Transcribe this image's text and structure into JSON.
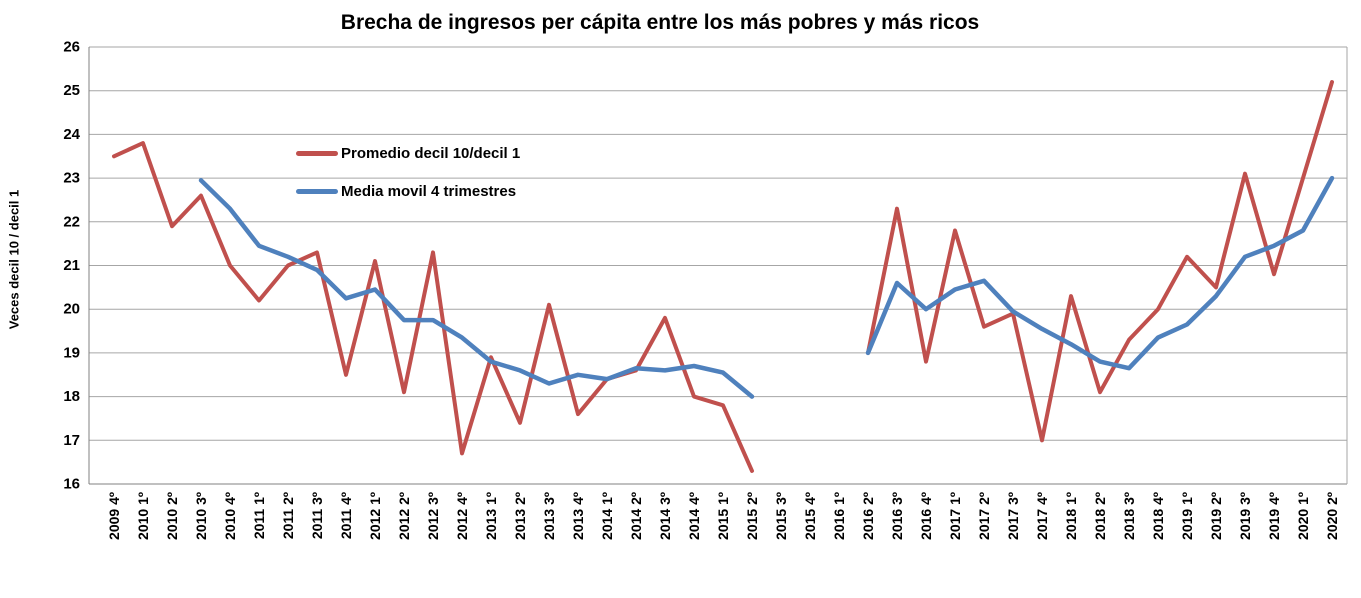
{
  "chart_data": {
    "type": "line",
    "title": "Brecha de ingresos per cápita entre los más pobres y más ricos",
    "ylabel": "Veces decil 10 / decil 1",
    "xlabel": "",
    "ylim": [
      16,
      26
    ],
    "ytick_step": 1,
    "grid": "horizontal",
    "legend_position": "inside-top-left",
    "x_tick_rotation_deg": 90,
    "categories": [
      "2009 4º",
      "2010 1º",
      "2010 2º",
      "2010 3º",
      "2010 4º",
      "2011 1º",
      "2011 2º",
      "2011 3º",
      "2011 4º",
      "2012 1º",
      "2012 2º",
      "2012 3º",
      "2012 4º",
      "2013 1º",
      "2013 2º",
      "2013 3º",
      "2013 4º",
      "2014 1º",
      "2014 2º",
      "2014 3º",
      "2014 4º",
      "2015 1º",
      "2015 2º",
      "2015 3º",
      "2015 4º",
      "2016 1º",
      "2016 2º",
      "2016 3º",
      "2016 4º",
      "2017 1º",
      "2017 2º",
      "2017 3º",
      "2017 4º",
      "2018 1º",
      "2018 2º",
      "2018 3º",
      "2018 4º",
      "2019 1º",
      "2019 2º",
      "2019 3º",
      "2019 4º",
      "2020 1º",
      "2020 2º"
    ],
    "series": [
      {
        "name": "Promedio decil 10/decil 1",
        "color": "#C0504D",
        "stroke_width": 4,
        "values": [
          23.5,
          23.8,
          21.9,
          22.6,
          21.0,
          20.2,
          21.0,
          21.3,
          18.5,
          21.1,
          18.1,
          21.3,
          16.7,
          18.9,
          17.4,
          20.1,
          17.6,
          18.4,
          18.6,
          19.8,
          18.0,
          17.8,
          16.3,
          null,
          null,
          null,
          19.0,
          22.3,
          18.8,
          21.8,
          19.6,
          19.9,
          17.0,
          20.3,
          18.1,
          19.3,
          20.0,
          21.2,
          20.5,
          23.1,
          20.8,
          23.0,
          25.2
        ]
      },
      {
        "name": "Media movil 4 trimestres",
        "color": "#4F81BD",
        "stroke_width": 4.5,
        "values": [
          null,
          null,
          null,
          22.95,
          22.3,
          21.45,
          21.2,
          20.9,
          20.25,
          20.45,
          19.75,
          19.75,
          19.35,
          18.8,
          18.6,
          18.3,
          18.5,
          18.4,
          18.65,
          18.6,
          18.7,
          18.55,
          18.0,
          null,
          null,
          null,
          19.0,
          20.6,
          20.0,
          20.45,
          20.65,
          19.95,
          19.55,
          19.2,
          18.8,
          18.65,
          19.35,
          19.65,
          20.3,
          21.2,
          21.45,
          21.8,
          23.0
        ]
      }
    ]
  },
  "colors": {
    "background": "#FFFFFF",
    "gridline": "#A6A6A6",
    "axis": "#808080",
    "text": "#000000"
  }
}
